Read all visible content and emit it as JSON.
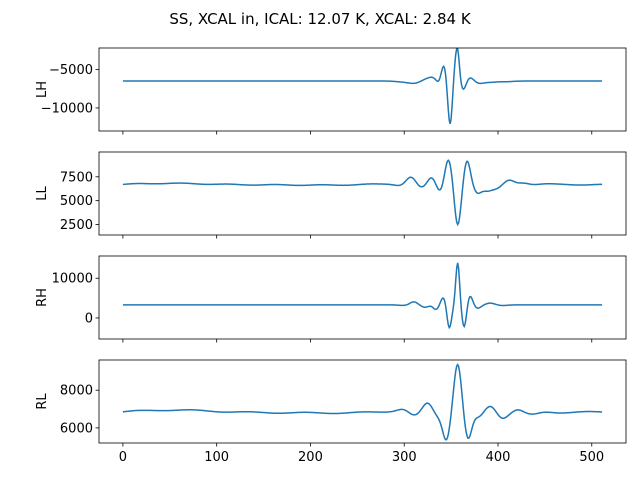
{
  "figure": {
    "title": "SS, XCAL in, ICAL: 12.07 K, XCAL: 2.84 K"
  },
  "style": {
    "line_color": "#1f77b4",
    "axis_color": "#000000",
    "background": "#ffffff"
  },
  "chart_data": [
    {
      "type": "line",
      "ylabel": "LH",
      "grid": false,
      "xlim": [
        -25.5,
        536.5
      ],
      "ylim": [
        -13000,
        -2200
      ],
      "yticks": [
        -10000,
        -5000
      ],
      "ytick_labels": [
        "−10000",
        "−5000"
      ],
      "show_xtick_labels": false,
      "baseline": -6500,
      "events": [
        [
          296,
          -80,
          -6
        ],
        [
          310,
          -300,
          -7
        ],
        [
          322,
          180,
          -5
        ],
        [
          330,
          450,
          -5
        ],
        [
          338,
          -700,
          -3
        ],
        [
          342,
          2300,
          -3
        ],
        [
          349,
          -6000,
          -2.5
        ],
        [
          354,
          2000,
          -2.5
        ],
        [
          357,
          3400,
          -2
        ],
        [
          363,
          -1200,
          -3
        ],
        [
          370,
          500,
          -4
        ],
        [
          380,
          -300,
          -5
        ],
        [
          392,
          -150,
          -6
        ],
        [
          408,
          -90,
          -7
        ]
      ]
    },
    {
      "type": "line",
      "ylabel": "LL",
      "grid": false,
      "xlim": [
        -25.5,
        536.5
      ],
      "ylim": [
        1400,
        10100
      ],
      "yticks": [
        2500,
        5000,
        7500
      ],
      "ytick_labels": [
        "2500",
        "5000",
        "7500"
      ],
      "show_xtick_labels": false,
      "baseline": 6700,
      "ripple": [
        [
          50,
          40
        ],
        [
          138,
          30
        ],
        [
          220,
          35
        ],
        [
          266,
          60
        ]
      ],
      "events": [
        [
          296,
          -200,
          -6
        ],
        [
          307,
          700,
          -5
        ],
        [
          318,
          -450,
          -5
        ],
        [
          329,
          700,
          -4
        ],
        [
          339,
          -900,
          -4
        ],
        [
          347,
          2700,
          -4
        ],
        [
          357,
          -4400,
          -3.5
        ],
        [
          367,
          2500,
          -3.5
        ],
        [
          378,
          -800,
          -4
        ],
        [
          388,
          -550,
          -5
        ],
        [
          398,
          -350,
          -5
        ],
        [
          412,
          450,
          -5
        ],
        [
          427,
          180,
          -6
        ],
        [
          450,
          80,
          -8
        ]
      ]
    },
    {
      "type": "line",
      "ylabel": "RH",
      "grid": false,
      "xlim": [
        -25.5,
        536.5
      ],
      "ylim": [
        -5300,
        15600
      ],
      "yticks": [
        0,
        10000
      ],
      "ytick_labels": [
        "0",
        "10000"
      ],
      "show_xtick_labels": false,
      "baseline": 3300,
      "events": [
        [
          300,
          -150,
          -6
        ],
        [
          310,
          800,
          -4
        ],
        [
          322,
          -600,
          -4
        ],
        [
          334,
          -1200,
          -3
        ],
        [
          342,
          2000,
          -3
        ],
        [
          348,
          -6000,
          -2.5
        ],
        [
          357,
          10700,
          -2
        ],
        [
          364,
          -5800,
          -2.5
        ],
        [
          370,
          2500,
          -3
        ],
        [
          378,
          -900,
          -4
        ],
        [
          392,
          450,
          -5
        ],
        [
          404,
          -180,
          -6
        ]
      ]
    },
    {
      "type": "line",
      "ylabel": "RL",
      "grid": false,
      "xlim": [
        -25.5,
        536.5
      ],
      "ylim": [
        5200,
        9600
      ],
      "yticks": [
        6000,
        8000
      ],
      "ytick_labels": [
        "6000",
        "8000"
      ],
      "show_xtick_labels": true,
      "xticks": [
        0,
        100,
        200,
        300,
        400,
        500
      ],
      "xtick_labels": [
        "0",
        "100",
        "200",
        "300",
        "400",
        "500"
      ],
      "baseline": 6850,
      "ripple": [
        [
          60,
          30
        ],
        [
          150,
          25
        ],
        [
          240,
          30
        ],
        [
          275,
          50
        ]
      ],
      "events": [
        [
          298,
          110,
          -6
        ],
        [
          311,
          -280,
          -6
        ],
        [
          325,
          400,
          -5
        ],
        [
          336,
          -300,
          -5
        ],
        [
          345,
          -1500,
          -4
        ],
        [
          357,
          2500,
          -4
        ],
        [
          368,
          -1500,
          -4
        ],
        [
          379,
          -300,
          -4.5
        ],
        [
          392,
          320,
          -5
        ],
        [
          405,
          -280,
          -5
        ],
        [
          421,
          170,
          -5
        ],
        [
          437,
          -90,
          -6
        ],
        [
          452,
          50,
          -8
        ]
      ]
    }
  ]
}
